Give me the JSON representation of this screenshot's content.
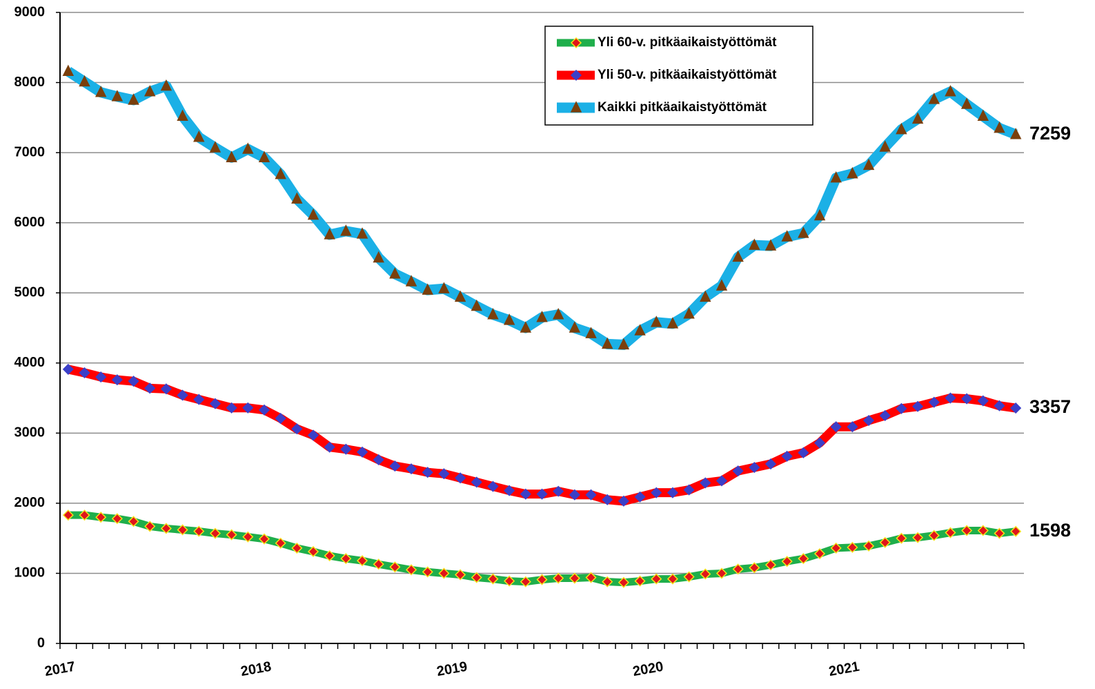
{
  "chart_data": {
    "type": "line",
    "categories": [
      "2017",
      null,
      null,
      null,
      null,
      null,
      null,
      null,
      null,
      null,
      null,
      null,
      "2018",
      null,
      null,
      null,
      null,
      null,
      null,
      null,
      null,
      null,
      null,
      null,
      "2019",
      null,
      null,
      null,
      null,
      null,
      null,
      null,
      null,
      null,
      null,
      null,
      "2020",
      null,
      null,
      null,
      null,
      null,
      null,
      null,
      null,
      null,
      null,
      null,
      "2021",
      null,
      null,
      null,
      null,
      null,
      null,
      null,
      null,
      null,
      null
    ],
    "series": [
      {
        "name": "Yli 60-v. pitkäaikaistyöttömät",
        "color": "#1fae4b",
        "marker": "diamond",
        "marker_color": "#e0151b",
        "marker_edge": "#f5e21a",
        "values": [
          1830,
          1830,
          1800,
          1780,
          1740,
          1670,
          1640,
          1620,
          1600,
          1570,
          1550,
          1520,
          1490,
          1430,
          1360,
          1310,
          1250,
          1210,
          1180,
          1130,
          1090,
          1050,
          1020,
          1000,
          980,
          940,
          920,
          890,
          880,
          910,
          930,
          930,
          940,
          880,
          870,
          890,
          920,
          920,
          950,
          990,
          1000,
          1060,
          1080,
          1120,
          1170,
          1210,
          1280,
          1360,
          1370,
          1390,
          1440,
          1500,
          1510,
          1540,
          1580,
          1610,
          1610,
          1570,
          1598
        ]
      },
      {
        "name": "Yli 50-v. pitkäaikaistyöttömät",
        "color": "#ff0000",
        "marker": "diamond",
        "marker_color": "#3b3fc8",
        "marker_edge": "#3b3fc8",
        "values": [
          3910,
          3860,
          3800,
          3760,
          3740,
          3640,
          3630,
          3540,
          3480,
          3420,
          3360,
          3360,
          3330,
          3210,
          3060,
          2970,
          2800,
          2770,
          2730,
          2620,
          2530,
          2490,
          2440,
          2420,
          2360,
          2300,
          2240,
          2180,
          2130,
          2130,
          2170,
          2120,
          2120,
          2050,
          2030,
          2090,
          2150,
          2150,
          2190,
          2290,
          2320,
          2460,
          2510,
          2560,
          2670,
          2720,
          2860,
          3090,
          3090,
          3180,
          3250,
          3350,
          3380,
          3440,
          3500,
          3490,
          3460,
          3390,
          3357
        ]
      },
      {
        "name": "Kaikki pitkäaikaistyöttömät",
        "color": "#1bb0e6",
        "marker": "triangle",
        "marker_color": "#7a3f0c",
        "marker_edge": "#7a3f0c",
        "values": [
          8160,
          8010,
          7860,
          7800,
          7750,
          7870,
          7950,
          7520,
          7220,
          7070,
          6930,
          7050,
          6930,
          6690,
          6340,
          6110,
          5830,
          5880,
          5840,
          5500,
          5270,
          5160,
          5040,
          5060,
          4940,
          4810,
          4690,
          4610,
          4500,
          4650,
          4690,
          4500,
          4420,
          4270,
          4260,
          4460,
          4580,
          4560,
          4700,
          4940,
          5100,
          5510,
          5680,
          5670,
          5800,
          5850,
          6100,
          6640,
          6700,
          6820,
          7080,
          7330,
          7480,
          7760,
          7870,
          7690,
          7520,
          7350,
          7259
        ]
      }
    ],
    "ylim": [
      0,
      9000
    ],
    "yticks": [
      0,
      1000,
      2000,
      3000,
      4000,
      5000,
      6000,
      7000,
      8000,
      9000
    ],
    "grid": true,
    "legend": "top-right",
    "end_labels": true
  }
}
